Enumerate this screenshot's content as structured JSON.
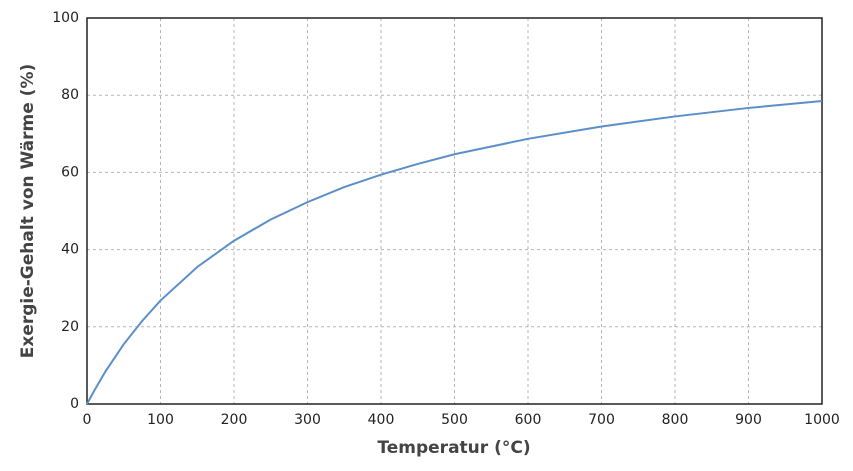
{
  "chart_data": {
    "type": "line",
    "x_label": "Temperatur (°C)",
    "y_label": "Exergie-Gehalt von Wärme (%)",
    "x": [
      0,
      10,
      25,
      50,
      75,
      100,
      150,
      200,
      250,
      300,
      350,
      400,
      450,
      500,
      600,
      700,
      800,
      900,
      1000
    ],
    "series": [
      {
        "color": "#5b8fc9",
        "values": [
          0,
          3.5,
          8.4,
          15.5,
          21.5,
          26.8,
          35.5,
          42.3,
          47.8,
          52.3,
          56.2,
          59.4,
          62.2,
          64.7,
          68.7,
          71.9,
          74.5,
          76.7,
          78.5
        ]
      }
    ],
    "xlim": [
      0,
      1000
    ],
    "xticks": [
      0,
      100,
      200,
      300,
      400,
      500,
      600,
      700,
      800,
      900,
      1000
    ],
    "ylim": [
      0,
      100
    ],
    "yticks": [
      0,
      20,
      40,
      60,
      80,
      100
    ],
    "grid": true
  }
}
